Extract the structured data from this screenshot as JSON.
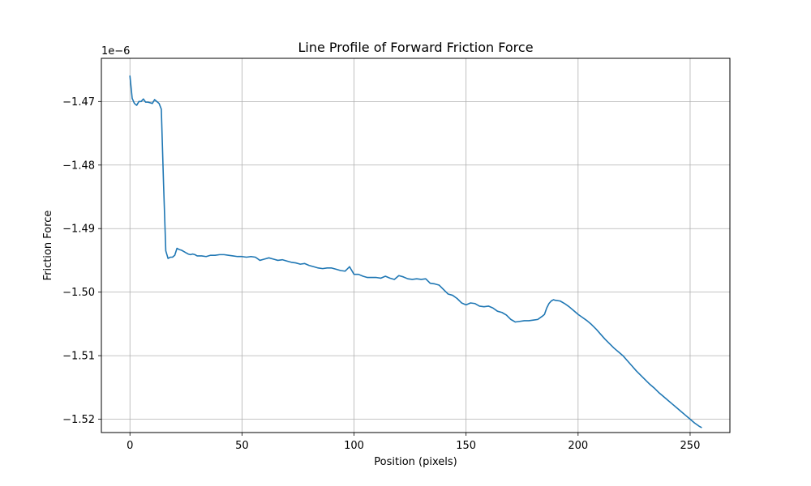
{
  "chart_data": {
    "type": "line",
    "title": "Line Profile of Forward Friction Force",
    "xlabel": "Position (pixels)",
    "ylabel": "Friction Force",
    "y_offset_label": "1e−6",
    "y_scale": 1e-06,
    "xlim": [
      -12.75,
      267.75
    ],
    "ylim": [
      -1.5221,
      -1.4632
    ],
    "x_ticks": [
      0,
      50,
      100,
      150,
      200,
      250
    ],
    "x_tick_labels": [
      "0",
      "50",
      "100",
      "150",
      "200",
      "250"
    ],
    "y_ticks": [
      -1.47,
      -1.48,
      -1.49,
      -1.5,
      -1.51,
      -1.52
    ],
    "y_tick_labels": [
      "−1.47",
      "−1.48",
      "−1.49",
      "−1.50",
      "−1.51",
      "−1.52"
    ],
    "grid": true,
    "colors": {
      "line": "#1f77b4",
      "grid": "#b0b0b0",
      "axes": "#000000"
    },
    "series": [
      {
        "values": [
          [
            0,
            -1.466
          ],
          [
            1,
            -1.4695
          ],
          [
            2,
            -1.4703
          ],
          [
            3,
            -1.4706
          ],
          [
            4,
            -1.47
          ],
          [
            5,
            -1.47
          ],
          [
            6,
            -1.4696
          ],
          [
            7,
            -1.4701
          ],
          [
            8,
            -1.4701
          ],
          [
            9,
            -1.4702
          ],
          [
            10,
            -1.4703
          ],
          [
            11,
            -1.4697
          ],
          [
            12,
            -1.47
          ],
          [
            13,
            -1.4703
          ],
          [
            14,
            -1.4712
          ],
          [
            15,
            -1.483
          ],
          [
            16,
            -1.4935
          ],
          [
            17,
            -1.4947
          ],
          [
            18,
            -1.4945
          ],
          [
            19,
            -1.4945
          ],
          [
            20,
            -1.4942
          ],
          [
            21,
            -1.4931
          ],
          [
            22,
            -1.4933
          ],
          [
            23,
            -1.4934
          ],
          [
            24,
            -1.4936
          ],
          [
            25,
            -1.4938
          ],
          [
            26,
            -1.494
          ],
          [
            27,
            -1.4941
          ],
          [
            28,
            -1.494
          ],
          [
            29,
            -1.4941
          ],
          [
            30,
            -1.4943
          ],
          [
            32,
            -1.4943
          ],
          [
            34,
            -1.4944
          ],
          [
            36,
            -1.4942
          ],
          [
            38,
            -1.4942
          ],
          [
            40,
            -1.4941
          ],
          [
            42,
            -1.4941
          ],
          [
            44,
            -1.4942
          ],
          [
            46,
            -1.4943
          ],
          [
            48,
            -1.4944
          ],
          [
            50,
            -1.4944
          ],
          [
            52,
            -1.4945
          ],
          [
            54,
            -1.4944
          ],
          [
            56,
            -1.4945
          ],
          [
            58,
            -1.495
          ],
          [
            60,
            -1.4948
          ],
          [
            62,
            -1.4946
          ],
          [
            64,
            -1.4948
          ],
          [
            66,
            -1.495
          ],
          [
            68,
            -1.4949
          ],
          [
            70,
            -1.4951
          ],
          [
            72,
            -1.4953
          ],
          [
            74,
            -1.4954
          ],
          [
            76,
            -1.4956
          ],
          [
            78,
            -1.4955
          ],
          [
            80,
            -1.4958
          ],
          [
            82,
            -1.496
          ],
          [
            84,
            -1.4962
          ],
          [
            86,
            -1.4963
          ],
          [
            88,
            -1.4962
          ],
          [
            90,
            -1.4962
          ],
          [
            92,
            -1.4964
          ],
          [
            94,
            -1.4966
          ],
          [
            96,
            -1.4967
          ],
          [
            98,
            -1.496
          ],
          [
            100,
            -1.4972
          ],
          [
            102,
            -1.4972
          ],
          [
            104,
            -1.4975
          ],
          [
            106,
            -1.4977
          ],
          [
            108,
            -1.4977
          ],
          [
            110,
            -1.4977
          ],
          [
            112,
            -1.4978
          ],
          [
            114,
            -1.4975
          ],
          [
            116,
            -1.4978
          ],
          [
            118,
            -1.498
          ],
          [
            120,
            -1.4974
          ],
          [
            122,
            -1.4976
          ],
          [
            124,
            -1.4979
          ],
          [
            126,
            -1.498
          ],
          [
            128,
            -1.4979
          ],
          [
            130,
            -1.498
          ],
          [
            132,
            -1.4979
          ],
          [
            134,
            -1.4986
          ],
          [
            136,
            -1.4987
          ],
          [
            138,
            -1.4989
          ],
          [
            140,
            -1.4996
          ],
          [
            142,
            -1.5003
          ],
          [
            144,
            -1.5005
          ],
          [
            146,
            -1.501
          ],
          [
            148,
            -1.5017
          ],
          [
            150,
            -1.502
          ],
          [
            152,
            -1.5017
          ],
          [
            154,
            -1.5018
          ],
          [
            156,
            -1.5022
          ],
          [
            158,
            -1.5023
          ],
          [
            160,
            -1.5022
          ],
          [
            162,
            -1.5025
          ],
          [
            164,
            -1.503
          ],
          [
            166,
            -1.5032
          ],
          [
            168,
            -1.5036
          ],
          [
            170,
            -1.5043
          ],
          [
            172,
            -1.5047
          ],
          [
            174,
            -1.5046
          ],
          [
            176,
            -1.5045
          ],
          [
            178,
            -1.5045
          ],
          [
            180,
            -1.5044
          ],
          [
            182,
            -1.5043
          ],
          [
            184,
            -1.5038
          ],
          [
            185,
            -1.5035
          ],
          [
            186,
            -1.5025
          ],
          [
            187,
            -1.5018
          ],
          [
            188,
            -1.5014
          ],
          [
            189,
            -1.5012
          ],
          [
            190,
            -1.5013
          ],
          [
            192,
            -1.5014
          ],
          [
            194,
            -1.5018
          ],
          [
            196,
            -1.5023
          ],
          [
            198,
            -1.5029
          ],
          [
            200,
            -1.5035
          ],
          [
            202,
            -1.504
          ],
          [
            204,
            -1.5045
          ],
          [
            206,
            -1.5051
          ],
          [
            208,
            -1.5058
          ],
          [
            210,
            -1.5066
          ],
          [
            212,
            -1.5074
          ],
          [
            214,
            -1.5081
          ],
          [
            216,
            -1.5088
          ],
          [
            218,
            -1.5094
          ],
          [
            220,
            -1.51
          ],
          [
            222,
            -1.5108
          ],
          [
            224,
            -1.5116
          ],
          [
            226,
            -1.5124
          ],
          [
            228,
            -1.5131
          ],
          [
            230,
            -1.5138
          ],
          [
            232,
            -1.5145
          ],
          [
            234,
            -1.5151
          ],
          [
            236,
            -1.5158
          ],
          [
            238,
            -1.5164
          ],
          [
            240,
            -1.517
          ],
          [
            242,
            -1.5176
          ],
          [
            244,
            -1.5182
          ],
          [
            246,
            -1.5188
          ],
          [
            248,
            -1.5194
          ],
          [
            250,
            -1.52
          ],
          [
            252,
            -1.5206
          ],
          [
            254,
            -1.5211
          ],
          [
            255,
            -1.5213
          ]
        ]
      }
    ]
  }
}
